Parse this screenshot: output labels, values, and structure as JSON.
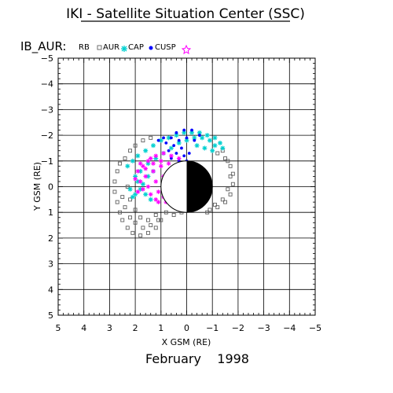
{
  "header": {
    "title": "IKI - Satellite Situation Center (SSC)"
  },
  "legend": {
    "label": "IB_AUR:",
    "entries": [
      {
        "name": "RB",
        "symbol": "none",
        "color": "#000000"
      },
      {
        "name": "AUR",
        "symbol": "square",
        "color": "#606060"
      },
      {
        "name": "CAP",
        "symbol": "asterisk",
        "color": "#00d0d0"
      },
      {
        "name": "CUSP",
        "symbol": "dot",
        "color": "#0000ff"
      },
      {
        "name": "",
        "symbol": "star",
        "color": "#ff00ff"
      }
    ]
  },
  "footer": {
    "date": "February    1998"
  },
  "chart_data": {
    "type": "scatter",
    "title": "IKI - Satellite Situation Center (SSC)",
    "xlabel": "X GSM (RE)",
    "ylabel": "Y GSM (RE)",
    "xlim": [
      5,
      -5
    ],
    "ylim": [
      -5,
      5
    ],
    "x_ticks": [
      5,
      4,
      3,
      2,
      1,
      0,
      -1,
      -2,
      -3,
      -4,
      -5
    ],
    "y_ticks": [
      -5,
      -4,
      -3,
      -2,
      -1,
      0,
      1,
      2,
      3,
      4,
      5
    ],
    "x_tick_labels": [
      "5",
      "4",
      "3",
      "2",
      "1",
      "0",
      "−1",
      "−2",
      "−3",
      "−4",
      "−5"
    ],
    "y_tick_labels": [
      "−5",
      "−4",
      "−3",
      "−2",
      "−1",
      "0",
      "1",
      "2",
      "3",
      "4",
      "5"
    ],
    "grid": true,
    "earth": {
      "radius": 1,
      "night_side": "negative-x"
    },
    "series": [
      {
        "name": "AUR",
        "marker": "square",
        "color": "#606060",
        "points": [
          [
            2.6,
            -0.9
          ],
          [
            2.7,
            -0.6
          ],
          [
            2.8,
            -0.2
          ],
          [
            2.8,
            0.2
          ],
          [
            2.7,
            0.6
          ],
          [
            2.6,
            1.0
          ],
          [
            2.5,
            1.3
          ],
          [
            2.3,
            1.6
          ],
          [
            2.1,
            1.8
          ],
          [
            1.8,
            1.9
          ],
          [
            1.5,
            1.8
          ],
          [
            1.2,
            1.6
          ],
          [
            1.0,
            1.3
          ],
          [
            0.8,
            1.0
          ],
          [
            2.4,
            -1.1
          ],
          [
            2.2,
            -1.4
          ],
          [
            2.0,
            -1.6
          ],
          [
            1.7,
            -1.8
          ],
          [
            1.4,
            -1.9
          ],
          [
            2.5,
            0.4
          ],
          [
            2.4,
            0.8
          ],
          [
            2.2,
            1.2
          ],
          [
            2.0,
            1.4
          ],
          [
            1.7,
            1.6
          ],
          [
            1.4,
            1.5
          ],
          [
            1.1,
            1.3
          ],
          [
            2.3,
            0.0
          ],
          [
            2.2,
            0.5
          ],
          [
            2.0,
            0.9
          ],
          [
            1.8,
            1.2
          ],
          [
            1.5,
            1.3
          ],
          [
            1.2,
            1.1
          ],
          [
            -1.2,
            -1.3
          ],
          [
            -1.5,
            -1.1
          ],
          [
            -1.7,
            -0.8
          ],
          [
            -1.8,
            -0.5
          ],
          [
            -1.8,
            -0.1
          ],
          [
            -1.7,
            0.3
          ],
          [
            -1.5,
            0.6
          ],
          [
            -1.2,
            0.8
          ],
          [
            -0.9,
            0.9
          ],
          [
            -1.4,
            -1.4
          ],
          [
            -1.6,
            -1.0
          ],
          [
            -1.7,
            -0.4
          ],
          [
            -1.6,
            0.1
          ],
          [
            -1.4,
            0.5
          ],
          [
            -1.1,
            0.7
          ],
          [
            -0.8,
            1.0
          ],
          [
            0.5,
            1.1
          ],
          [
            0.2,
            1.0
          ]
        ]
      },
      {
        "name": "CAP",
        "marker": "asterisk",
        "color": "#00d0d0",
        "points": [
          [
            2.3,
            -0.8
          ],
          [
            2.1,
            -1.0
          ],
          [
            1.9,
            -1.2
          ],
          [
            1.6,
            -1.4
          ],
          [
            1.3,
            -1.6
          ],
          [
            1.0,
            -1.8
          ],
          [
            0.7,
            -1.9
          ],
          [
            0.4,
            -2.0
          ],
          [
            0.1,
            -2.1
          ],
          [
            -0.2,
            -2.1
          ],
          [
            -0.5,
            -2.1
          ],
          [
            -0.8,
            -2.0
          ],
          [
            -1.1,
            -1.9
          ],
          [
            -1.3,
            -1.7
          ],
          [
            -1.4,
            -1.5
          ],
          [
            2.0,
            -0.4
          ],
          [
            1.8,
            -0.6
          ],
          [
            1.5,
            -0.9
          ],
          [
            1.2,
            -1.1
          ],
          [
            0.9,
            -1.3
          ],
          [
            0.6,
            -1.5
          ],
          [
            0.3,
            -1.7
          ],
          [
            0.0,
            -1.8
          ],
          [
            -0.3,
            -1.9
          ],
          [
            -0.6,
            -1.9
          ],
          [
            -0.9,
            -1.8
          ],
          [
            -1.1,
            -1.6
          ],
          [
            2.2,
            0.1
          ],
          [
            2.0,
            0.3
          ],
          [
            1.8,
            0.1
          ],
          [
            1.6,
            0.3
          ],
          [
            1.4,
            0.5
          ],
          [
            1.9,
            -0.2
          ],
          [
            1.7,
            -0.1
          ],
          [
            2.1,
            0.4
          ],
          [
            1.5,
            -0.4
          ],
          [
            1.3,
            -0.6
          ],
          [
            -0.4,
            -1.6
          ],
          [
            -0.7,
            -1.5
          ],
          [
            -1.0,
            -1.4
          ]
        ]
      },
      {
        "name": "CUSP",
        "marker": "dot",
        "color": "#0000ff",
        "points": [
          [
            0.4,
            -2.1
          ],
          [
            0.1,
            -2.2
          ],
          [
            -0.2,
            -2.2
          ],
          [
            0.6,
            -1.9
          ],
          [
            0.3,
            -1.8
          ],
          [
            0.0,
            -1.9
          ],
          [
            0.8,
            -1.7
          ],
          [
            0.5,
            -1.6
          ],
          [
            0.2,
            -1.5
          ],
          [
            0.7,
            -1.4
          ],
          [
            0.4,
            -1.3
          ],
          [
            0.1,
            -1.2
          ],
          [
            0.6,
            -1.1
          ],
          [
            0.3,
            -1.0
          ],
          [
            0.0,
            -1.0
          ],
          [
            0.5,
            -0.8
          ],
          [
            0.2,
            -0.7
          ],
          [
            0.4,
            -0.5
          ],
          [
            0.1,
            -0.4
          ],
          [
            -0.3,
            -1.8
          ],
          [
            -0.5,
            -2.0
          ],
          [
            0.2,
            0.4
          ],
          [
            0.1,
            0.5
          ],
          [
            0.3,
            0.2
          ],
          [
            -0.1,
            -1.3
          ],
          [
            0.9,
            -1.9
          ],
          [
            1.1,
            -1.8
          ]
        ]
      },
      {
        "name": "star",
        "marker": "star",
        "color": "#ff00ff",
        "points": [
          [
            1.9,
            -0.6
          ],
          [
            1.7,
            -0.8
          ],
          [
            1.5,
            -1.0
          ],
          [
            1.2,
            -1.2
          ],
          [
            0.9,
            -1.3
          ],
          [
            0.6,
            -1.2
          ],
          [
            0.3,
            -1.1
          ],
          [
            1.8,
            -0.2
          ],
          [
            1.6,
            -0.4
          ],
          [
            1.3,
            -0.6
          ],
          [
            1.0,
            -0.8
          ],
          [
            0.7,
            -0.9
          ],
          [
            0.4,
            -0.8
          ],
          [
            1.7,
            0.1
          ],
          [
            1.5,
            0.0
          ],
          [
            1.2,
            -0.2
          ],
          [
            0.9,
            -0.4
          ],
          [
            0.6,
            -0.5
          ],
          [
            1.4,
            0.3
          ],
          [
            1.1,
            0.2
          ],
          [
            0.8,
            0.0
          ],
          [
            0.5,
            -0.1
          ],
          [
            1.2,
            0.5
          ],
          [
            0.9,
            0.4
          ],
          [
            0.6,
            0.3
          ],
          [
            1.9,
            0.2
          ],
          [
            2.0,
            -0.3
          ],
          [
            1.0,
            -1.0
          ],
          [
            0.7,
            -0.6
          ],
          [
            1.3,
            -0.9
          ],
          [
            1.6,
            -0.7
          ],
          [
            0.8,
            0.6
          ],
          [
            0.5,
            0.5
          ],
          [
            1.1,
            0.6
          ],
          [
            1.8,
            -0.9
          ],
          [
            1.4,
            -1.1
          ]
        ]
      }
    ]
  }
}
